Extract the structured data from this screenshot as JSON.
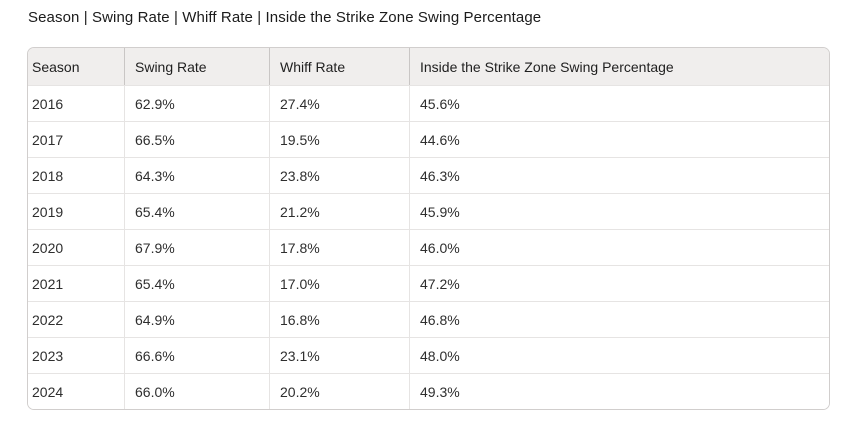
{
  "title": "Season | Swing Rate | Whiff Rate | Inside the Strike Zone Swing Percentage",
  "colors": {
    "header_bg": "#f0eeed",
    "card_border": "#d1cecd",
    "cell_border": "#e6e4e3",
    "text": "#2e2e2e"
  },
  "chart_data": {
    "type": "table",
    "title": "Season | Swing Rate | Whiff Rate | Inside the Strike Zone Swing Percentage",
    "columns": [
      "Season",
      "Swing Rate",
      "Whiff Rate",
      "Inside the Strike Zone Swing Percentage"
    ],
    "rows": [
      [
        "2016",
        "62.9%",
        "27.4%",
        "45.6%"
      ],
      [
        "2017",
        "66.5%",
        "19.5%",
        "44.6%"
      ],
      [
        "2018",
        "64.3%",
        "23.8%",
        "46.3%"
      ],
      [
        "2019",
        "65.4%",
        "21.2%",
        "45.9%"
      ],
      [
        "2020",
        "67.9%",
        "17.8%",
        "46.0%"
      ],
      [
        "2021",
        "65.4%",
        "17.0%",
        "47.2%"
      ],
      [
        "2022",
        "64.9%",
        "16.8%",
        "46.8%"
      ],
      [
        "2023",
        "66.6%",
        "23.1%",
        "48.0%"
      ],
      [
        "2024",
        "66.0%",
        "20.2%",
        "49.3%"
      ]
    ]
  }
}
